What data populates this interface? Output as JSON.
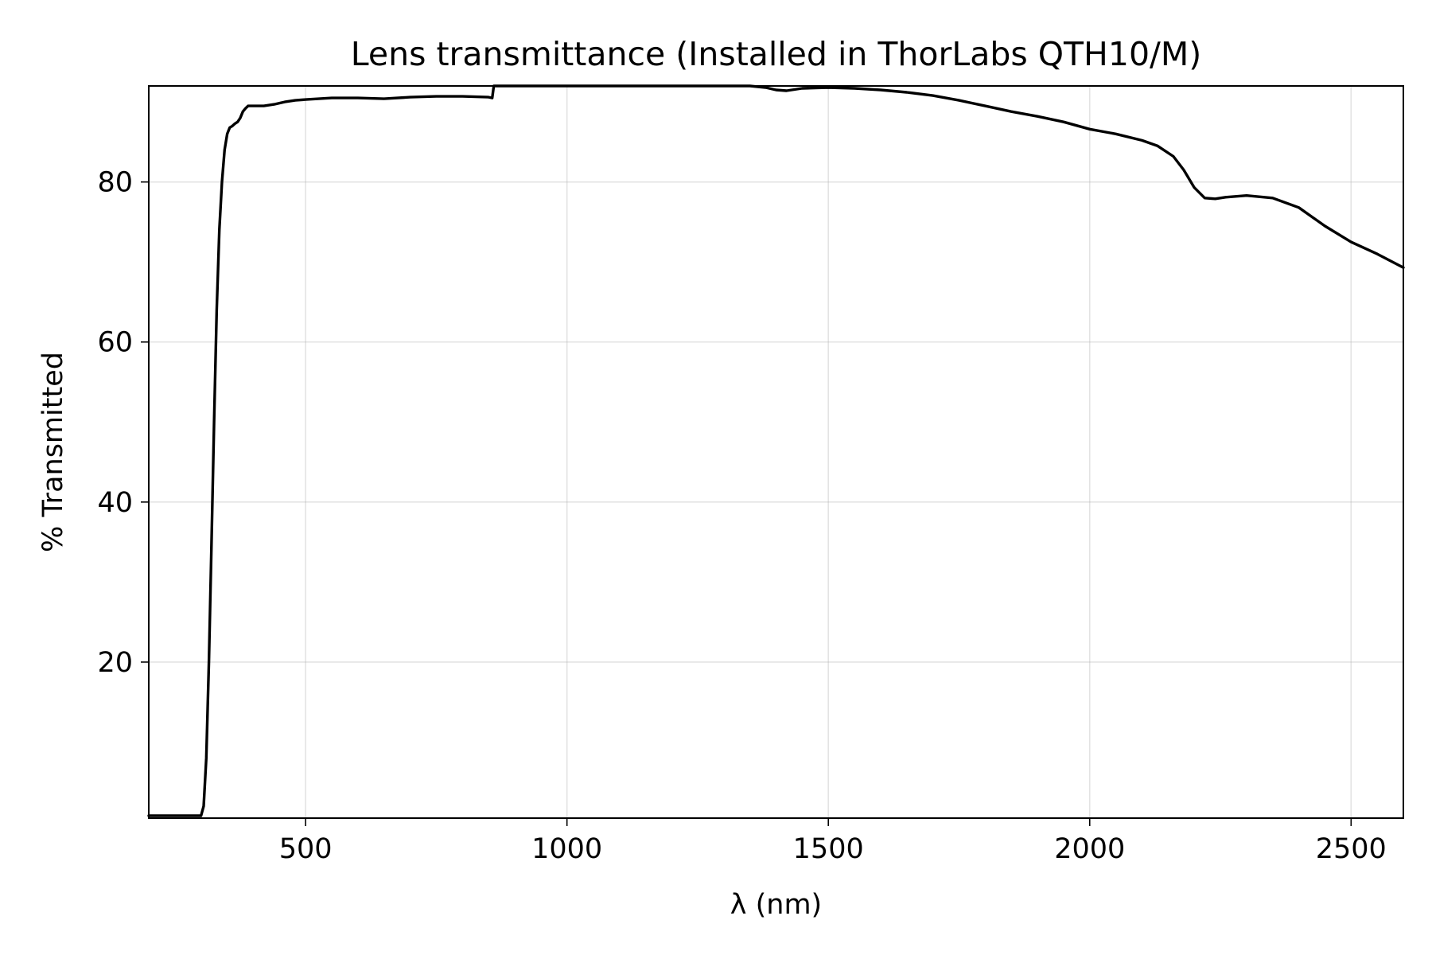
{
  "chart_data": {
    "type": "line",
    "title": "Lens transmittance (Installed in ThorLabs QTH10/M)",
    "xlabel": "λ (nm)",
    "ylabel": "% Transmitted",
    "xlim": [
      200,
      2600
    ],
    "ylim": [
      0.5,
      92
    ],
    "xticks": [
      500,
      1000,
      1500,
      2000,
      2500
    ],
    "yticks": [
      20,
      40,
      60,
      80
    ],
    "grid": true,
    "line_color": "#000000",
    "series": [
      {
        "x": [
          200,
          250,
          300,
          305,
          310,
          315,
          320,
          325,
          330,
          335,
          340,
          345,
          350,
          355,
          360,
          365,
          370,
          375,
          380,
          385,
          390,
          395,
          400,
          420,
          440,
          460,
          480,
          500,
          550,
          600,
          650,
          700,
          750,
          800,
          850,
          857,
          860,
          865,
          900,
          1000,
          1100,
          1200,
          1300,
          1350,
          1380,
          1400,
          1420,
          1450,
          1500,
          1550,
          1600,
          1650,
          1700,
          1750,
          1800,
          1850,
          1900,
          1950,
          2000,
          2050,
          2100,
          2130,
          2160,
          2180,
          2200,
          2220,
          2240,
          2260,
          2300,
          2350,
          2400,
          2450,
          2500,
          2550,
          2600
        ],
        "y": [
          0.8,
          0.8,
          0.8,
          2,
          8,
          20,
          35,
          50,
          64,
          74,
          80,
          84,
          86,
          86.8,
          87,
          87.3,
          87.5,
          88,
          88.8,
          89.2,
          89.5,
          89.5,
          89.5,
          89.5,
          89.7,
          90,
          90.2,
          90.3,
          90.5,
          90.5,
          90.4,
          90.6,
          90.7,
          90.7,
          90.6,
          90.5,
          92,
          92,
          92,
          92,
          92,
          92,
          92,
          92,
          91.8,
          91.5,
          91.4,
          91.7,
          91.8,
          91.7,
          91.5,
          91.2,
          90.8,
          90.2,
          89.5,
          88.8,
          88.2,
          87.5,
          86.6,
          86,
          85.2,
          84.5,
          83.2,
          81.5,
          79.3,
          78,
          77.9,
          78.1,
          78.3,
          78,
          76.8,
          74.5,
          72.5,
          71,
          69.3
        ]
      }
    ]
  }
}
